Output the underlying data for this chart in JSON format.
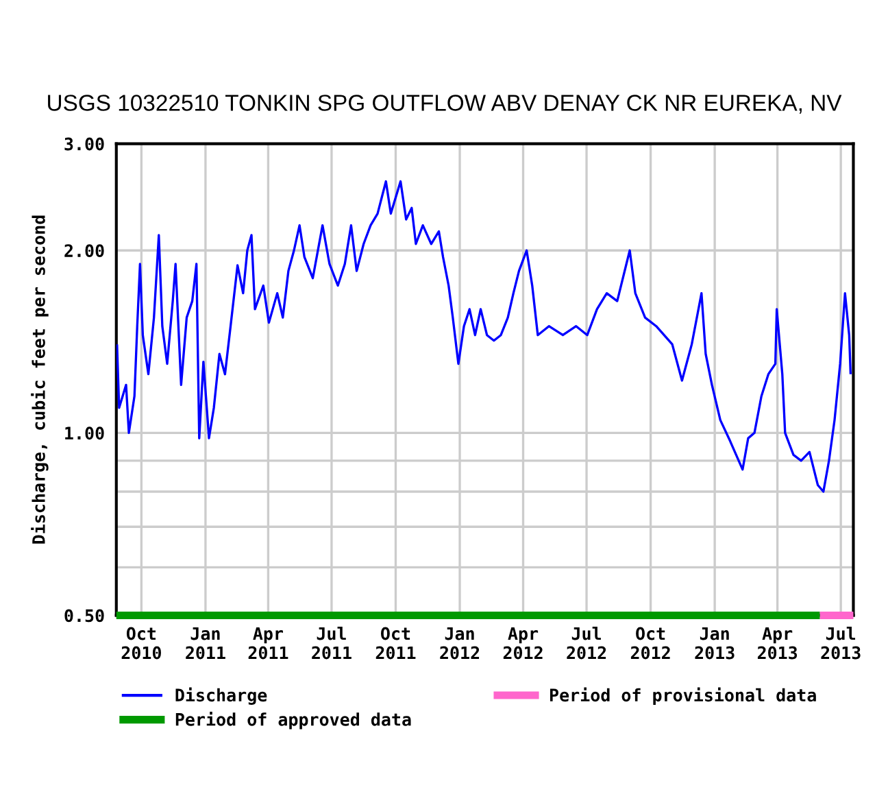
{
  "chart_data": {
    "type": "line",
    "title": "USGS 10322510 TONKIN SPG OUTFLOW ABV DENAY CK NR EUREKA, NV",
    "ylabel": "Discharge, cubic feet per second",
    "log": "y",
    "grid": true,
    "legend": "bottom",
    "marker": "none",
    "line_style": "solid",
    "xlim": [
      "2010-08-26",
      "2013-07-19"
    ],
    "xticks": [
      {
        "value": "2010-10-01",
        "label": "Oct\n2010"
      },
      {
        "value": "2011-01-01",
        "label": "Jan\n2011"
      },
      {
        "value": "2011-04-01",
        "label": "Apr\n2011"
      },
      {
        "value": "2011-07-01",
        "label": "Jul\n2011"
      },
      {
        "value": "2011-10-01",
        "label": "Oct\n2011"
      },
      {
        "value": "2012-01-01",
        "label": "Jan\n2012"
      },
      {
        "value": "2012-04-01",
        "label": "Apr\n2012"
      },
      {
        "value": "2012-07-01",
        "label": "Jul\n2012"
      },
      {
        "value": "2012-10-01",
        "label": "Oct\n2012"
      },
      {
        "value": "2013-01-01",
        "label": "Jan\n2013"
      },
      {
        "value": "2013-04-01",
        "label": "Apr\n2013"
      },
      {
        "value": "2013-07-01",
        "label": "Jul\n2013"
      }
    ],
    "ylim": [
      0.5,
      3
    ],
    "yticks": [
      {
        "value": 0.5,
        "label": "0.50"
      },
      {
        "value": 0.6,
        "label": null
      },
      {
        "value": 0.7,
        "label": null
      },
      {
        "value": 0.8,
        "label": null
      },
      {
        "value": 0.9,
        "label": null
      },
      {
        "value": 1,
        "label": "1.00"
      },
      {
        "value": 2,
        "label": "2.00"
      },
      {
        "value": 3,
        "label": "3.00"
      }
    ],
    "series": [
      {
        "name": "Discharge",
        "color": "#0000ff",
        "x": [
          "2010-08-27",
          "2010-08-30",
          "2010-09-09",
          "2010-09-13",
          "2010-09-21",
          "2010-09-25",
          "2010-09-29",
          "2010-10-03",
          "2010-10-11",
          "2010-10-19",
          "2010-10-26",
          "2010-10-31",
          "2010-11-07",
          "2010-11-15",
          "2010-11-19",
          "2010-11-27",
          "2010-12-05",
          "2010-12-13",
          "2010-12-19",
          "2010-12-23",
          "2010-12-29",
          "2011-01-06",
          "2011-01-13",
          "2011-01-21",
          "2011-01-29",
          "2011-02-06",
          "2011-02-16",
          "2011-02-24",
          "2011-03-02",
          "2011-03-08",
          "2011-03-13",
          "2011-03-25",
          "2011-04-02",
          "2011-04-14",
          "2011-04-22",
          "2011-04-30",
          "2011-05-08",
          "2011-05-16",
          "2011-05-23",
          "2011-06-04",
          "2011-06-18",
          "2011-06-28",
          "2011-07-10",
          "2011-07-20",
          "2011-07-29",
          "2011-08-06",
          "2011-08-16",
          "2011-08-26",
          "2011-09-05",
          "2011-09-17",
          "2011-09-24",
          "2011-10-08",
          "2011-10-16",
          "2011-10-24",
          "2011-10-30",
          "2011-11-09",
          "2011-11-21",
          "2011-12-02",
          "2011-12-08",
          "2011-12-16",
          "2011-12-22",
          "2011-12-30",
          "2012-01-07",
          "2012-01-15",
          "2012-01-23",
          "2012-01-31",
          "2012-02-09",
          "2012-02-19",
          "2012-02-29",
          "2012-03-10",
          "2012-03-18",
          "2012-03-26",
          "2012-04-06",
          "2012-04-14",
          "2012-04-22",
          "2012-05-08",
          "2012-05-28",
          "2012-06-16",
          "2012-07-02",
          "2012-07-16",
          "2012-07-30",
          "2012-08-14",
          "2012-09-01",
          "2012-09-09",
          "2012-09-23",
          "2012-10-09",
          "2012-11-01",
          "2012-11-15",
          "2012-11-29",
          "2012-12-13",
          "2012-12-19",
          "2012-12-28",
          "2013-01-09",
          "2013-01-23",
          "2013-02-10",
          "2013-02-18",
          "2013-02-27",
          "2013-03-09",
          "2013-03-19",
          "2013-03-29",
          "2013-03-31",
          "2013-04-08",
          "2013-04-12",
          "2013-04-24",
          "2013-05-05",
          "2013-05-17",
          "2013-05-29",
          "2013-06-06",
          "2013-06-14",
          "2013-06-22",
          "2013-06-30",
          "2013-07-07",
          "2013-07-13",
          "2013-07-15"
        ],
        "values": [
          1.4,
          1.1,
          1.2,
          1.0,
          1.15,
          1.5,
          1.9,
          1.45,
          1.25,
          1.55,
          2.12,
          1.5,
          1.3,
          1.65,
          1.9,
          1.2,
          1.55,
          1.65,
          1.9,
          0.98,
          1.31,
          0.98,
          1.1,
          1.35,
          1.25,
          1.5,
          1.89,
          1.7,
          2.0,
          2.12,
          1.6,
          1.75,
          1.52,
          1.7,
          1.55,
          1.85,
          2.0,
          2.2,
          1.95,
          1.8,
          2.2,
          1.9,
          1.75,
          1.9,
          2.2,
          1.85,
          2.05,
          2.2,
          2.3,
          2.6,
          2.3,
          2.6,
          2.25,
          2.35,
          2.05,
          2.2,
          2.05,
          2.15,
          1.95,
          1.75,
          1.55,
          1.3,
          1.5,
          1.6,
          1.45,
          1.6,
          1.45,
          1.42,
          1.45,
          1.55,
          1.7,
          1.85,
          2.0,
          1.75,
          1.45,
          1.5,
          1.45,
          1.5,
          1.45,
          1.6,
          1.7,
          1.65,
          2.0,
          1.7,
          1.55,
          1.5,
          1.4,
          1.22,
          1.4,
          1.7,
          1.35,
          1.2,
          1.05,
          0.97,
          0.87,
          0.98,
          1.0,
          1.15,
          1.25,
          1.3,
          1.6,
          1.25,
          1.0,
          0.92,
          0.9,
          0.93,
          0.82,
          0.8,
          0.9,
          1.05,
          1.3,
          1.7,
          1.45,
          1.25
        ]
      },
      {
        "name": "Period of approved data",
        "color": "#009900",
        "x": [
          "2010-08-26",
          "2013-06-01"
        ],
        "values": [
          0.5,
          0.5
        ]
      },
      {
        "name": "Period of provisional data",
        "color": "#ff66cc",
        "x": [
          "2013-06-01",
          "2013-07-19"
        ],
        "values": [
          0.5,
          0.5
        ]
      }
    ]
  }
}
